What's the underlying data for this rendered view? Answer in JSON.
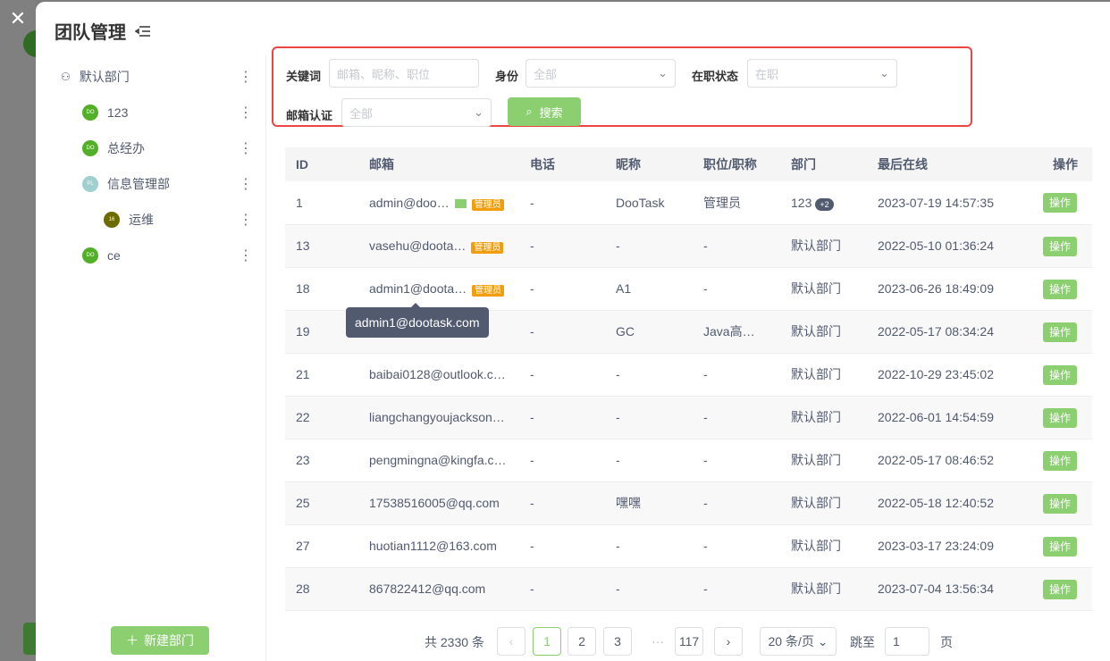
{
  "title": "团队管理",
  "sidebar": {
    "items": [
      {
        "label": "默认部门",
        "avatar": "",
        "color": ""
      },
      {
        "label": "123",
        "avatar": "DO",
        "color": "#52b028"
      },
      {
        "label": "总经办",
        "avatar": "DO",
        "color": "#52b028"
      },
      {
        "label": "信息管理部",
        "avatar": "PL",
        "color": "#9fcfcf"
      },
      {
        "label": "运维",
        "avatar": "16",
        "color": "#6b6b00"
      },
      {
        "label": "ce",
        "avatar": "DO",
        "color": "#52b028"
      }
    ],
    "new_dept": "新建部门"
  },
  "filter": {
    "keyword_label": "关键词",
    "keyword_placeholder": "邮箱、昵称、职位",
    "identity_label": "身份",
    "identity_value": "全部",
    "status_label": "在职状态",
    "status_value": "在职",
    "email_label": "邮箱认证",
    "email_value": "全部",
    "search": "搜索"
  },
  "table": {
    "headers": [
      "ID",
      "邮箱",
      "电话",
      "昵称",
      "职位/职称",
      "部门",
      "最后在线",
      "操作"
    ],
    "rows": [
      {
        "id": "1",
        "email": "admin@doo…",
        "verified": true,
        "admin": "管理员",
        "phone": "-",
        "nick": "DooTask",
        "pos": "管理员",
        "dept": "123",
        "extra": "+2",
        "last": "2023-07-19 14:57:35",
        "op": "操作"
      },
      {
        "id": "13",
        "email": "vasehu@doota…",
        "admin": "管理员",
        "phone": "-",
        "nick": "-",
        "pos": "-",
        "dept": "默认部门",
        "last": "2022-05-10 01:36:24",
        "op": "操作"
      },
      {
        "id": "18",
        "email": "admin1@doota…",
        "admin": "管理员",
        "phone": "-",
        "nick": "A1",
        "pos": "-",
        "dept": "默认部门",
        "last": "2023-06-26 18:49:09",
        "op": "操作"
      },
      {
        "id": "19",
        "email": "",
        "phone": "-",
        "nick": "GC",
        "pos": "Java高…",
        "dept": "默认部门",
        "last": "2022-05-17 08:34:24",
        "op": "操作"
      },
      {
        "id": "21",
        "email": "baibai0128@outlook.c…",
        "phone": "-",
        "nick": "-",
        "pos": "-",
        "dept": "默认部门",
        "last": "2022-10-29 23:45:02",
        "op": "操作"
      },
      {
        "id": "22",
        "email": "liangchangyoujackson…",
        "phone": "-",
        "nick": "-",
        "pos": "-",
        "dept": "默认部门",
        "last": "2022-06-01 14:54:59",
        "op": "操作"
      },
      {
        "id": "23",
        "email": "pengmingna@kingfa.c…",
        "phone": "-",
        "nick": "-",
        "pos": "-",
        "dept": "默认部门",
        "last": "2022-05-17 08:46:52",
        "op": "操作"
      },
      {
        "id": "25",
        "email": "17538516005@qq.com",
        "phone": "-",
        "nick": "嘿嘿",
        "pos": "-",
        "dept": "默认部门",
        "last": "2022-05-18 12:40:52",
        "op": "操作"
      },
      {
        "id": "27",
        "email": "huotian1112@163.com",
        "phone": "-",
        "nick": "-",
        "pos": "-",
        "dept": "默认部门",
        "last": "2023-03-17 23:24:09",
        "op": "操作"
      },
      {
        "id": "28",
        "email": "867822412@qq.com",
        "phone": "-",
        "nick": "-",
        "pos": "-",
        "dept": "默认部门",
        "last": "2023-07-04 13:56:34",
        "op": "操作"
      }
    ]
  },
  "tooltip": "admin1@dootask.com",
  "pagination": {
    "total": "共 2330 条",
    "pages": [
      "1",
      "2",
      "3",
      "···",
      "117"
    ],
    "current": "1",
    "size": "20 条/页",
    "jump_label": "跳至",
    "jump_value": "1",
    "page_unit": "页"
  },
  "colors": {
    "accent": "#8bcf70",
    "highlight": "#ef4444",
    "admin_tag": "#f29d0b"
  }
}
